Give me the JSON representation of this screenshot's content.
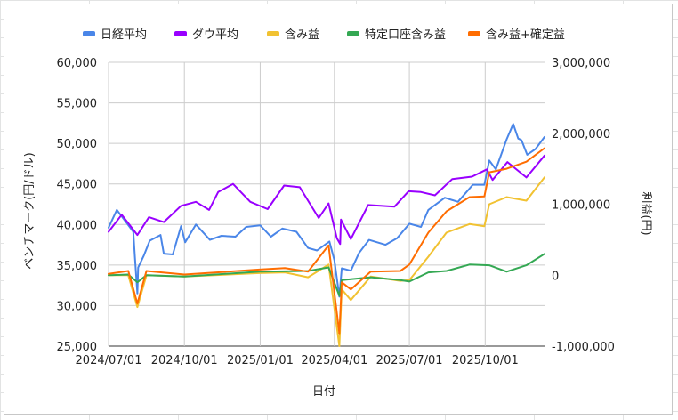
{
  "chart_data": {
    "type": "line",
    "title": "",
    "xlabel": "日付",
    "ylabel_left": "ベンチマーク(円/ドル)",
    "ylabel_right": "利益(円)",
    "left_axis": {
      "min": 25000,
      "max": 60000,
      "ticks": [
        25000,
        30000,
        35000,
        40000,
        45000,
        50000,
        55000,
        60000
      ],
      "tick_labels": [
        "25,000",
        "30,000",
        "35,000",
        "40,000",
        "45,000",
        "50,000",
        "55,000",
        "60,000"
      ]
    },
    "right_axis": {
      "min": -1000000,
      "max": 3000000,
      "ticks": [
        -1000000,
        0,
        1000000,
        2000000,
        3000000
      ],
      "tick_labels": [
        "-1,000,000",
        "0",
        "1,000,000",
        "2,000,000",
        "3,000,000"
      ]
    },
    "x_axis": {
      "min": "2024-07-01",
      "max": "2025-12-12",
      "tick_dates": [
        "2024-07-01",
        "2024-10-01",
        "2025-01-01",
        "2025-04-01",
        "2025-07-01",
        "2025-10-01"
      ],
      "tick_labels": [
        "2024/07/01",
        "2024/10/01",
        "2025/01/01",
        "2025/04/01",
        "2025/07/01",
        "2025/10/01"
      ]
    },
    "grid": true,
    "legend_position": "top",
    "series": [
      {
        "name": "日経平均",
        "axis": "left",
        "color": "#4a86e8",
        "points": [
          [
            "2024-07-01",
            39600
          ],
          [
            "2024-07-11",
            41800
          ],
          [
            "2024-07-17",
            41000
          ],
          [
            "2024-07-31",
            39100
          ],
          [
            "2024-08-02",
            36000
          ],
          [
            "2024-08-05",
            31500
          ],
          [
            "2024-08-06",
            34700
          ],
          [
            "2024-08-13",
            36200
          ],
          [
            "2024-08-20",
            38000
          ],
          [
            "2024-09-02",
            38700
          ],
          [
            "2024-09-06",
            36400
          ],
          [
            "2024-09-17",
            36300
          ],
          [
            "2024-09-27",
            39800
          ],
          [
            "2024-10-02",
            37800
          ],
          [
            "2024-10-15",
            40000
          ],
          [
            "2024-11-01",
            38100
          ],
          [
            "2024-11-15",
            38600
          ],
          [
            "2024-12-02",
            38500
          ],
          [
            "2024-12-15",
            39700
          ],
          [
            "2025-01-01",
            39900
          ],
          [
            "2025-01-14",
            38500
          ],
          [
            "2025-01-28",
            39500
          ],
          [
            "2025-02-14",
            39100
          ],
          [
            "2025-02-28",
            37100
          ],
          [
            "2025-03-11",
            36800
          ],
          [
            "2025-03-26",
            37900
          ],
          [
            "2025-04-01",
            35600
          ],
          [
            "2025-04-07",
            31100
          ],
          [
            "2025-04-10",
            34600
          ],
          [
            "2025-04-21",
            34300
          ],
          [
            "2025-05-01",
            36500
          ],
          [
            "2025-05-13",
            38100
          ],
          [
            "2025-06-02",
            37500
          ],
          [
            "2025-06-16",
            38300
          ],
          [
            "2025-07-01",
            40100
          ],
          [
            "2025-07-15",
            39700
          ],
          [
            "2025-07-24",
            41800
          ],
          [
            "2025-08-13",
            43300
          ],
          [
            "2025-08-29",
            42800
          ],
          [
            "2025-09-16",
            44900
          ],
          [
            "2025-09-30",
            44900
          ],
          [
            "2025-10-06",
            47900
          ],
          [
            "2025-10-14",
            46800
          ],
          [
            "2025-10-27",
            50500
          ],
          [
            "2025-11-04",
            52400
          ],
          [
            "2025-11-10",
            50600
          ],
          [
            "2025-11-14",
            50400
          ],
          [
            "2025-11-21",
            48600
          ],
          [
            "2025-12-01",
            49300
          ],
          [
            "2025-12-12",
            50800
          ]
        ]
      },
      {
        "name": "ダウ平均",
        "axis": "left",
        "color": "#9900ff",
        "points": [
          [
            "2024-07-01",
            39100
          ],
          [
            "2024-07-17",
            41200
          ],
          [
            "2024-08-05",
            38700
          ],
          [
            "2024-08-19",
            40900
          ],
          [
            "2024-09-06",
            40300
          ],
          [
            "2024-09-27",
            42300
          ],
          [
            "2024-10-15",
            42800
          ],
          [
            "2024-10-31",
            41800
          ],
          [
            "2024-11-11",
            44000
          ],
          [
            "2024-11-29",
            45000
          ],
          [
            "2024-12-20",
            42800
          ],
          [
            "2025-01-10",
            41900
          ],
          [
            "2025-01-30",
            44800
          ],
          [
            "2025-02-18",
            44600
          ],
          [
            "2025-03-13",
            40800
          ],
          [
            "2025-03-25",
            42600
          ],
          [
            "2025-04-04",
            38300
          ],
          [
            "2025-04-08",
            37600
          ],
          [
            "2025-04-09",
            40600
          ],
          [
            "2025-04-21",
            38200
          ],
          [
            "2025-05-12",
            42400
          ],
          [
            "2025-05-27",
            42300
          ],
          [
            "2025-06-13",
            42200
          ],
          [
            "2025-06-30",
            44100
          ],
          [
            "2025-07-15",
            44000
          ],
          [
            "2025-08-01",
            43600
          ],
          [
            "2025-08-22",
            45600
          ],
          [
            "2025-09-15",
            45900
          ],
          [
            "2025-10-03",
            46800
          ],
          [
            "2025-10-10",
            45500
          ],
          [
            "2025-10-28",
            47700
          ],
          [
            "2025-11-20",
            45800
          ],
          [
            "2025-12-12",
            48500
          ]
        ]
      },
      {
        "name": "含み益",
        "axis": "right",
        "color": "#f1c232",
        "points": [
          [
            "2024-07-01",
            0
          ],
          [
            "2024-07-25",
            0
          ],
          [
            "2024-08-05",
            -450000
          ],
          [
            "2024-08-16",
            0
          ],
          [
            "2024-10-01",
            -20000
          ],
          [
            "2024-12-31",
            30000
          ],
          [
            "2025-01-31",
            40000
          ],
          [
            "2025-02-28",
            -30000
          ],
          [
            "2025-03-25",
            150000
          ],
          [
            "2025-04-07",
            -1000000
          ],
          [
            "2025-04-10",
            -200000
          ],
          [
            "2025-04-21",
            -350000
          ],
          [
            "2025-05-15",
            -20000
          ],
          [
            "2025-06-20",
            -80000
          ],
          [
            "2025-07-01",
            -70000
          ],
          [
            "2025-07-24",
            260000
          ],
          [
            "2025-08-15",
            600000
          ],
          [
            "2025-09-12",
            720000
          ],
          [
            "2025-09-30",
            690000
          ],
          [
            "2025-10-06",
            1000000
          ],
          [
            "2025-10-27",
            1100000
          ],
          [
            "2025-11-20",
            1050000
          ],
          [
            "2025-12-12",
            1380000
          ]
        ]
      },
      {
        "name": "特定口座含み益",
        "axis": "right",
        "color": "#34a853",
        "points": [
          [
            "2024-07-01",
            0
          ],
          [
            "2024-07-25",
            10000
          ],
          [
            "2024-08-05",
            -100000
          ],
          [
            "2024-08-16",
            0
          ],
          [
            "2024-10-01",
            -20000
          ],
          [
            "2024-12-31",
            50000
          ],
          [
            "2025-02-28",
            60000
          ],
          [
            "2025-03-25",
            110000
          ],
          [
            "2025-04-07",
            -290000
          ],
          [
            "2025-04-10",
            -70000
          ],
          [
            "2025-05-15",
            -30000
          ],
          [
            "2025-06-20",
            -70000
          ],
          [
            "2025-07-01",
            -90000
          ],
          [
            "2025-07-24",
            40000
          ],
          [
            "2025-08-15",
            60000
          ],
          [
            "2025-09-12",
            150000
          ],
          [
            "2025-10-06",
            140000
          ],
          [
            "2025-10-27",
            50000
          ],
          [
            "2025-11-20",
            140000
          ],
          [
            "2025-12-12",
            300000
          ]
        ]
      },
      {
        "name": "含み益+確定益",
        "axis": "right",
        "color": "#ff6d01",
        "points": [
          [
            "2024-07-01",
            20000
          ],
          [
            "2024-07-25",
            60000
          ],
          [
            "2024-08-05",
            -400000
          ],
          [
            "2024-08-16",
            60000
          ],
          [
            "2024-10-01",
            10000
          ],
          [
            "2024-12-31",
            80000
          ],
          [
            "2025-01-31",
            100000
          ],
          [
            "2025-02-28",
            50000
          ],
          [
            "2025-03-25",
            420000
          ],
          [
            "2025-04-07",
            -820000
          ],
          [
            "2025-04-10",
            -100000
          ],
          [
            "2025-04-21",
            -200000
          ],
          [
            "2025-05-15",
            50000
          ],
          [
            "2025-06-20",
            60000
          ],
          [
            "2025-07-01",
            150000
          ],
          [
            "2025-07-24",
            600000
          ],
          [
            "2025-08-15",
            900000
          ],
          [
            "2025-09-12",
            1100000
          ],
          [
            "2025-09-30",
            1110000
          ],
          [
            "2025-10-06",
            1450000
          ],
          [
            "2025-10-27",
            1500000
          ],
          [
            "2025-11-20",
            1600000
          ],
          [
            "2025-12-12",
            1790000
          ]
        ]
      }
    ]
  }
}
